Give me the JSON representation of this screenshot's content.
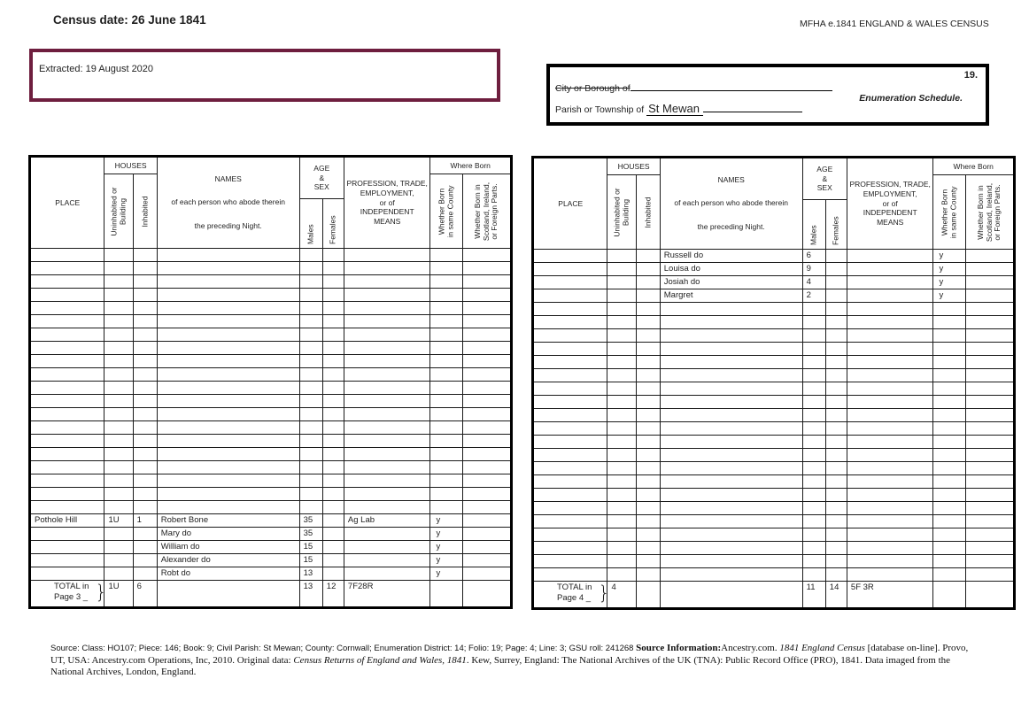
{
  "page": {
    "census_date": "Census date: 26 June 1841",
    "header_right": "MFHA e.1841 ENGLAND & WALES CENSUS",
    "extracted": "Extracted: 19 August 2020"
  },
  "schedule_box": {
    "city_borough_label": "City or Borough of",
    "page_number": "19.",
    "schedule_title": "Enumeration Schedule.",
    "parish_label": "Parish or Township of",
    "parish_value": "St Mewan"
  },
  "table_header": {
    "place": "PLACE",
    "houses": "HOUSES",
    "uninhabited": "Uninhabited or\nBuilding",
    "inhabited": "Inhabited",
    "names": "NAMES\n\nof each person who abode therein\n\nthe preceding Night.",
    "age_sex": "AGE\n&\nSEX",
    "males": "Males",
    "females": "Females",
    "profession": "PROFESSION, TRADE,\nEMPLOYMENT,\nor of\nINDEPENDENT\nMEANS",
    "where_born": "Where Born",
    "born_same_county": "Whether Born\nin same County",
    "born_elsewhere": "Whether Born in\nScotland, Ireland,\nor Foreign Parts."
  },
  "left_table": {
    "row_count": 25,
    "entries": [
      {
        "row": 20,
        "cells": [
          "Pothole Hill",
          "1U",
          "1",
          "Robert Bone",
          "35",
          "",
          "Ag Lab",
          "y",
          ""
        ]
      },
      {
        "row": 21,
        "cells": [
          "",
          "",
          "",
          "Mary do",
          "35",
          "",
          "",
          "y",
          ""
        ]
      },
      {
        "row": 22,
        "cells": [
          "",
          "",
          "",
          "William do",
          "15",
          "",
          "",
          "y",
          ""
        ]
      },
      {
        "row": 23,
        "cells": [
          "",
          "",
          "",
          "Alexander do",
          "15",
          "",
          "",
          "y",
          ""
        ]
      },
      {
        "row": 24,
        "cells": [
          "",
          "",
          "",
          "Robt do",
          "13",
          "",
          "",
          "y",
          ""
        ]
      }
    ],
    "total": {
      "label_line1": "TOTAL in",
      "label_line2": "Page 3 _",
      "brace": "}",
      "cells": [
        "1U",
        "6",
        "",
        "13",
        "12",
        "7F28R",
        "",
        ""
      ]
    }
  },
  "right_table": {
    "row_count": 25,
    "entries": [
      {
        "row": 0,
        "cells": [
          "",
          "",
          "",
          "Russell do",
          "6",
          "",
          "",
          "y",
          ""
        ]
      },
      {
        "row": 1,
        "cells": [
          "",
          "",
          "",
          "Louisa do",
          "9",
          "",
          "",
          "y",
          ""
        ]
      },
      {
        "row": 2,
        "cells": [
          "",
          "",
          "",
          "Josiah do",
          "4",
          "",
          "",
          "y",
          ""
        ]
      },
      {
        "row": 3,
        "cells": [
          "",
          "",
          "",
          "Margret",
          "2",
          "",
          "",
          "y",
          ""
        ]
      }
    ],
    "total": {
      "label_line1": "TOTAL in",
      "label_line2": "Page 4 _",
      "brace": "}",
      "cells": [
        "4",
        "",
        "",
        "11",
        "14",
        "5F 3R",
        "",
        ""
      ]
    }
  },
  "footer": {
    "source_line": "Source: Class: HO107; Piece: 146; Book: 9; Civil Parish: St Mewan; County: Cornwall; Enumeration District: 14; Folio: 19; Page: 4; Line: 3; GSU roll: 241268 ",
    "source_info_label": "Source Information:",
    "source_info_pre": "Ancestry.com. ",
    "italic_title_1": "1841 England Census",
    "mid_text": " [database on-line]. Provo, UT, USA: Ancestry.com Operations, Inc, 2010. Original data: ",
    "italic_title_2": "Census Returns of England and Wales, 1841",
    "tail_text": ". Kew, Surrey, England: The National Archives of the UK (TNA): Public Record Office (PRO), 1841. Data imaged from the National Archives, London, England."
  },
  "colors": {
    "extracted_box_border": "#6e1e3e",
    "table_border": "#000000"
  }
}
